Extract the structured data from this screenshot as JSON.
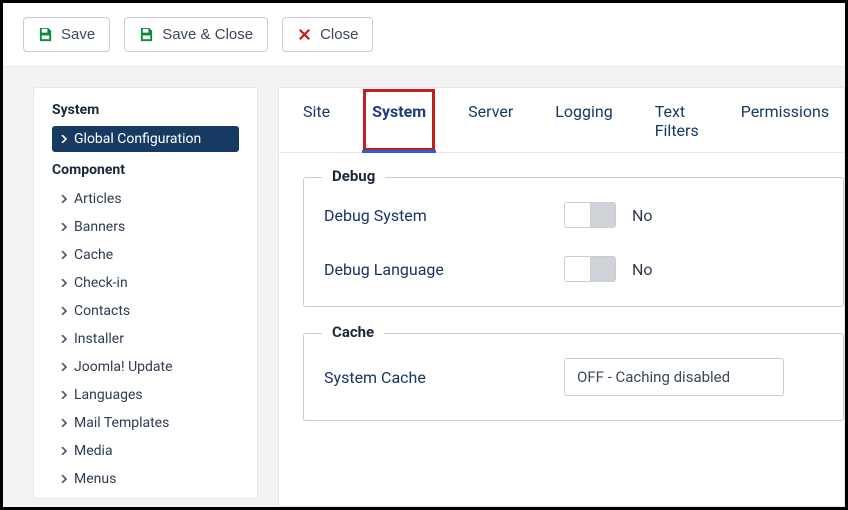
{
  "toolbar": {
    "save": "Save",
    "save_close": "Save & Close",
    "close": "Close"
  },
  "sidebar": {
    "system_heading": "System",
    "global_config": "Global Configuration",
    "component_heading": "Component",
    "items": [
      "Articles",
      "Banners",
      "Cache",
      "Check-in",
      "Contacts",
      "Installer",
      "Joomla! Update",
      "Languages",
      "Mail Templates",
      "Media",
      "Menus"
    ]
  },
  "tabs": {
    "site": "Site",
    "system": "System",
    "server": "Server",
    "logging": "Logging",
    "text_filters": "Text Filters",
    "permissions": "Permissions",
    "active": "system",
    "highlight": "system"
  },
  "panel": {
    "debug": {
      "legend": "Debug",
      "debug_system": {
        "label": "Debug System",
        "value_text": "No",
        "on": false
      },
      "debug_language": {
        "label": "Debug Language",
        "value_text": "No",
        "on": false
      }
    },
    "cache": {
      "legend": "Cache",
      "system_cache": {
        "label": "System Cache",
        "value": "OFF - Caching disabled"
      }
    }
  },
  "colors": {
    "accent": "#2a5fd8",
    "active_side_bg": "#173a63",
    "highlight_outline": "#c22020",
    "save_icon": "#0f8a3c",
    "close_icon": "#c22020",
    "border": "#c9ccd1"
  }
}
